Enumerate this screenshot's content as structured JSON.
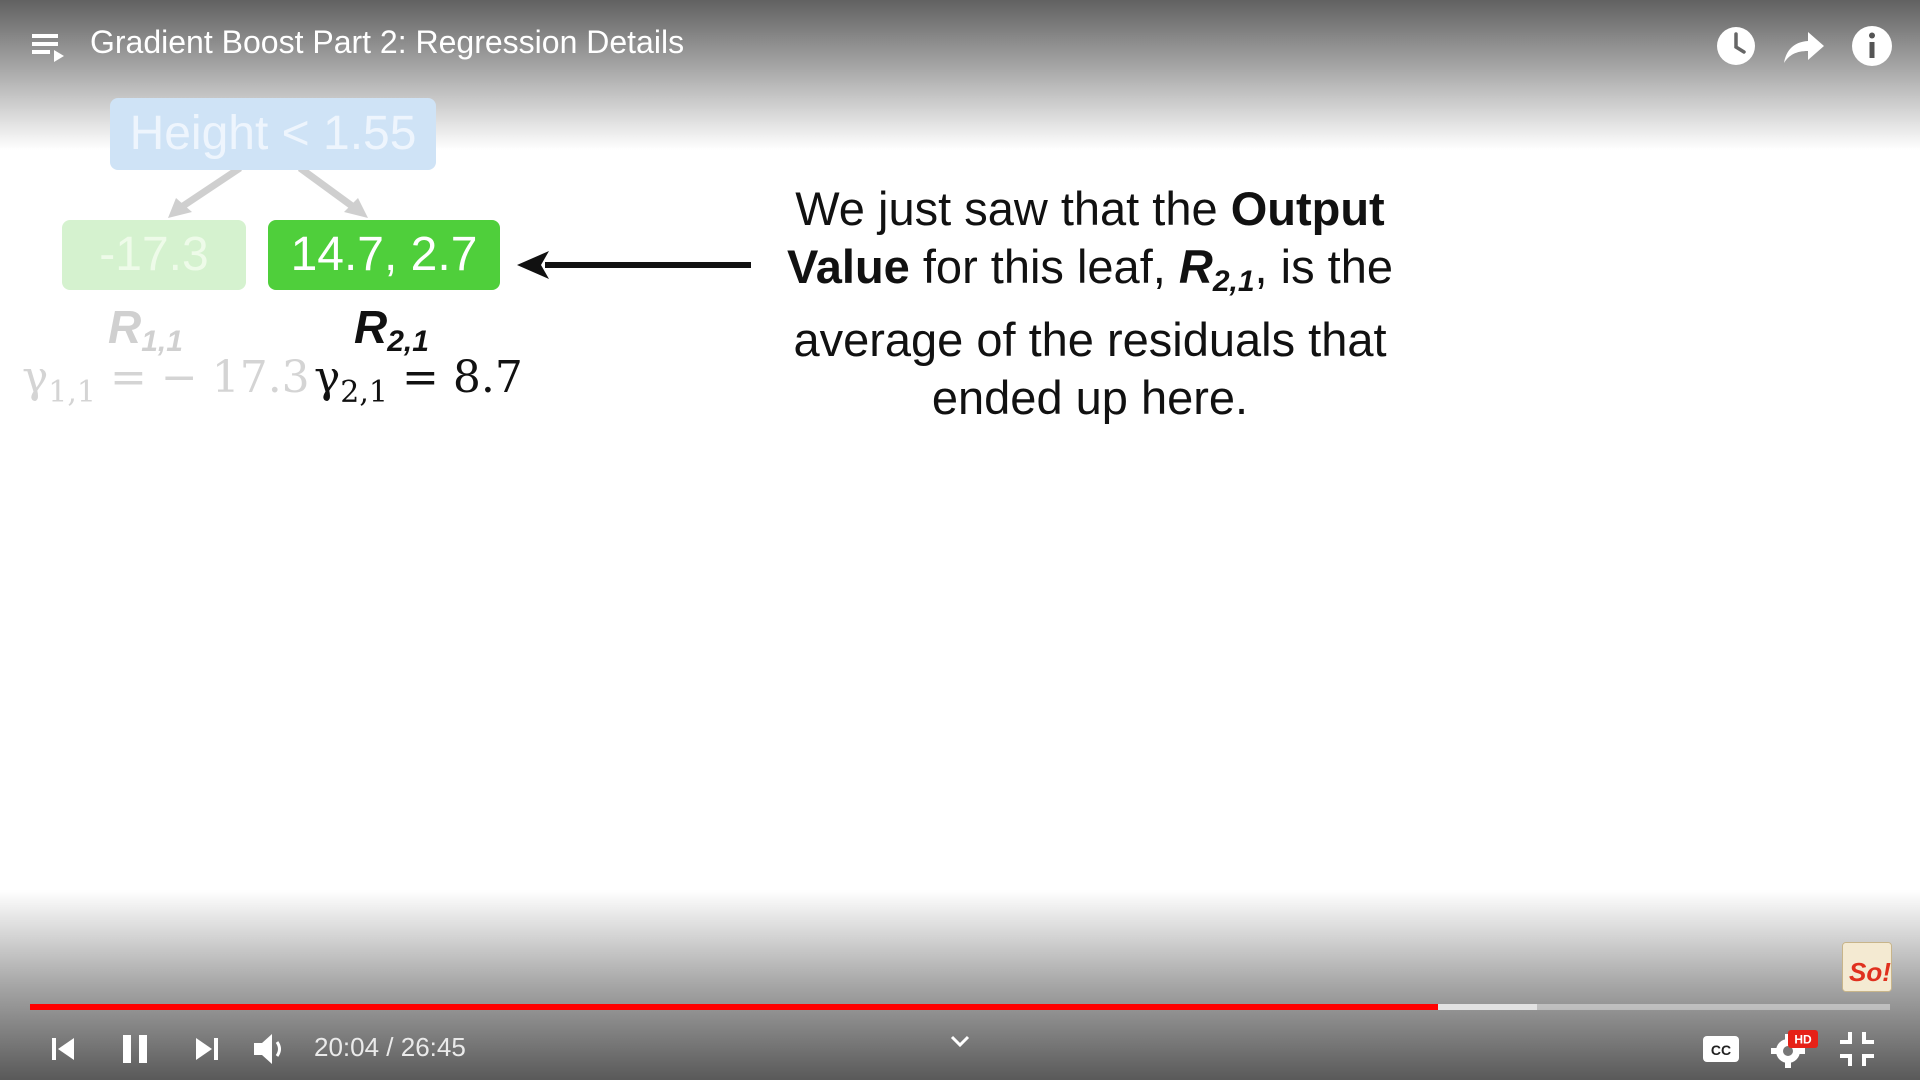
{
  "player": {
    "title": "Gradient Boost Part 2: Regression Details",
    "time_current": "20:04",
    "time_separator": " / ",
    "time_total": "26:45",
    "progress_played_fraction": 0.757,
    "progress_buffered_fraction": 0.81,
    "hd_badge": "HD",
    "cc_label": "CC",
    "icons": [
      "playlist-icon",
      "watch-later-icon",
      "share-icon",
      "info-icon",
      "previous-icon",
      "pause-icon",
      "next-icon",
      "volume-icon",
      "chevron-down-icon",
      "captions-icon",
      "settings-icon",
      "exit-fullscreen-icon"
    ],
    "colors": {
      "progress": "#ff0000",
      "hd": "#e62117"
    }
  },
  "slide": {
    "root_node": "Height < 1.55",
    "leaf_left": "-17.3",
    "leaf_right": "14.7, 2.7",
    "r_left_base": "R",
    "r_left_sub": "1,1",
    "r_right_base": "R",
    "r_right_sub": "2,1",
    "gamma_left_sym": "γ",
    "gamma_left_sub": "1,1",
    "gamma_left_rhs": " = − 17.3",
    "gamma_right_sym": "γ",
    "gamma_right_sub": "2,1",
    "gamma_right_rhs": " = 8.7",
    "explain": {
      "p1": "We just saw that the ",
      "b1": "Output Value",
      "p2": " for this leaf, ",
      "r_base": "R",
      "r_sub": "2,1",
      "p3": ", is the average of the residuals that ended up here."
    },
    "colors": {
      "root": "#cfe3f6",
      "leaf_faded": "#d5f2cf",
      "leaf_active": "#4fcf3b"
    }
  },
  "logo": {
    "text": "So!"
  }
}
